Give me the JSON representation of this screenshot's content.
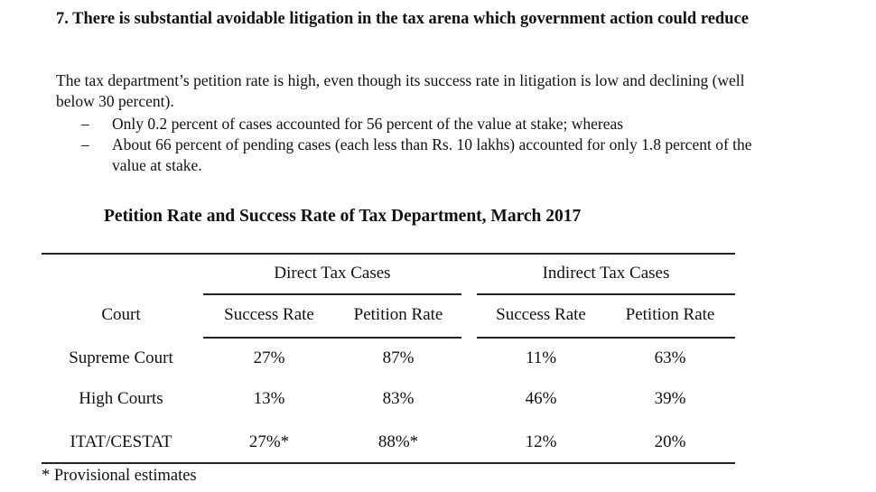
{
  "section": {
    "heading": "7. There is substantial avoidable litigation in the tax arena which government action could reduce",
    "paragraph": "The tax department’s petition rate is high, even though its success rate in litigation is low and declining (well below 30 percent).",
    "bullets": [
      "Only 0.2 percent of cases accounted for 56 percent of the value at stake; whereas",
      "About 66 percent of pending cases (each less than Rs. 10 lakhs) accounted for only 1.8 percent of the value at stake."
    ],
    "bullet_marker": "–"
  },
  "table": {
    "title": "Petition Rate and Success Rate of Tax Department, March 2017",
    "group_headers": [
      "Direct Tax Cases",
      "Indirect Tax Cases"
    ],
    "column_headers": [
      "Court",
      "Success Rate",
      "Petition Rate",
      "Success Rate",
      "Petition Rate"
    ],
    "rows": [
      {
        "court": "Supreme Court",
        "values": [
          "27%",
          "87%",
          "11%",
          "63%"
        ]
      },
      {
        "court": "High Courts",
        "values": [
          "13%",
          "83%",
          "46%",
          "39%"
        ]
      },
      {
        "court": "ITAT/CESTAT",
        "values": [
          "27%*",
          "88%*",
          "12%",
          "20%"
        ]
      }
    ],
    "footnote": "* Provisional estimates"
  }
}
